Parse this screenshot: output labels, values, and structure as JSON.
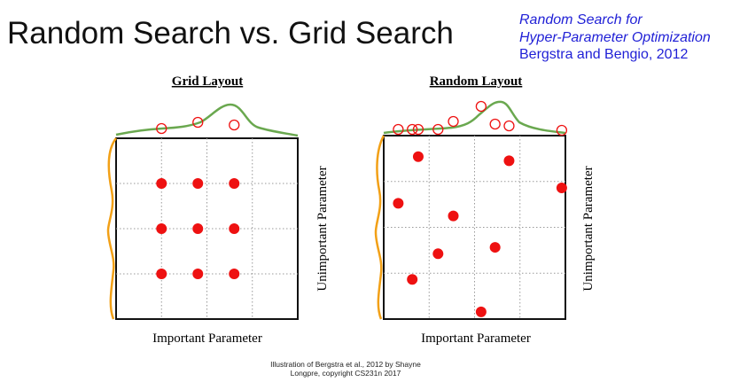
{
  "title": "Random Search vs. Grid Search",
  "citation": {
    "line1": "Random Search for",
    "line2": "Hyper-Parameter Optimization",
    "line3": "Bergstra and Bengio, 2012",
    "color": "#1f1fd6"
  },
  "panels": [
    {
      "heading": "Grid Layout",
      "xlabel": "Important Parameter",
      "ylabel": "Unimportant Parameter",
      "points": [
        [
          0.2,
          0.25
        ],
        [
          0.4,
          0.25
        ],
        [
          0.6,
          0.25
        ],
        [
          0.2,
          0.5
        ],
        [
          0.4,
          0.5
        ],
        [
          0.6,
          0.5
        ],
        [
          0.2,
          0.75
        ],
        [
          0.4,
          0.75
        ],
        [
          0.6,
          0.75
        ]
      ],
      "projections": [
        0.2,
        0.4,
        0.6
      ]
    },
    {
      "heading": "Random Layout",
      "xlabel": "Important Parameter",
      "ylabel": "Unimportant Parameter",
      "points": [
        [
          0.19,
          0.115
        ],
        [
          0.69,
          0.137
        ],
        [
          0.98,
          0.285
        ],
        [
          0.08,
          0.369
        ],
        [
          0.383,
          0.438
        ],
        [
          0.613,
          0.609
        ],
        [
          0.299,
          0.644
        ],
        [
          0.157,
          0.784
        ],
        [
          0.536,
          0.961
        ]
      ],
      "projections": [
        0.08,
        0.157,
        0.19,
        0.299,
        0.383,
        0.536,
        0.613,
        0.69,
        0.98
      ]
    }
  ],
  "colors": {
    "point": "#ee1111",
    "important_curve": "#6aa84f",
    "unimportant_curve": "#f2a016"
  },
  "credit": {
    "line1": "Illustration of Bergstra et al., 2012 by Shayne",
    "line2": "Longpre, copyright CS231n 2017"
  }
}
